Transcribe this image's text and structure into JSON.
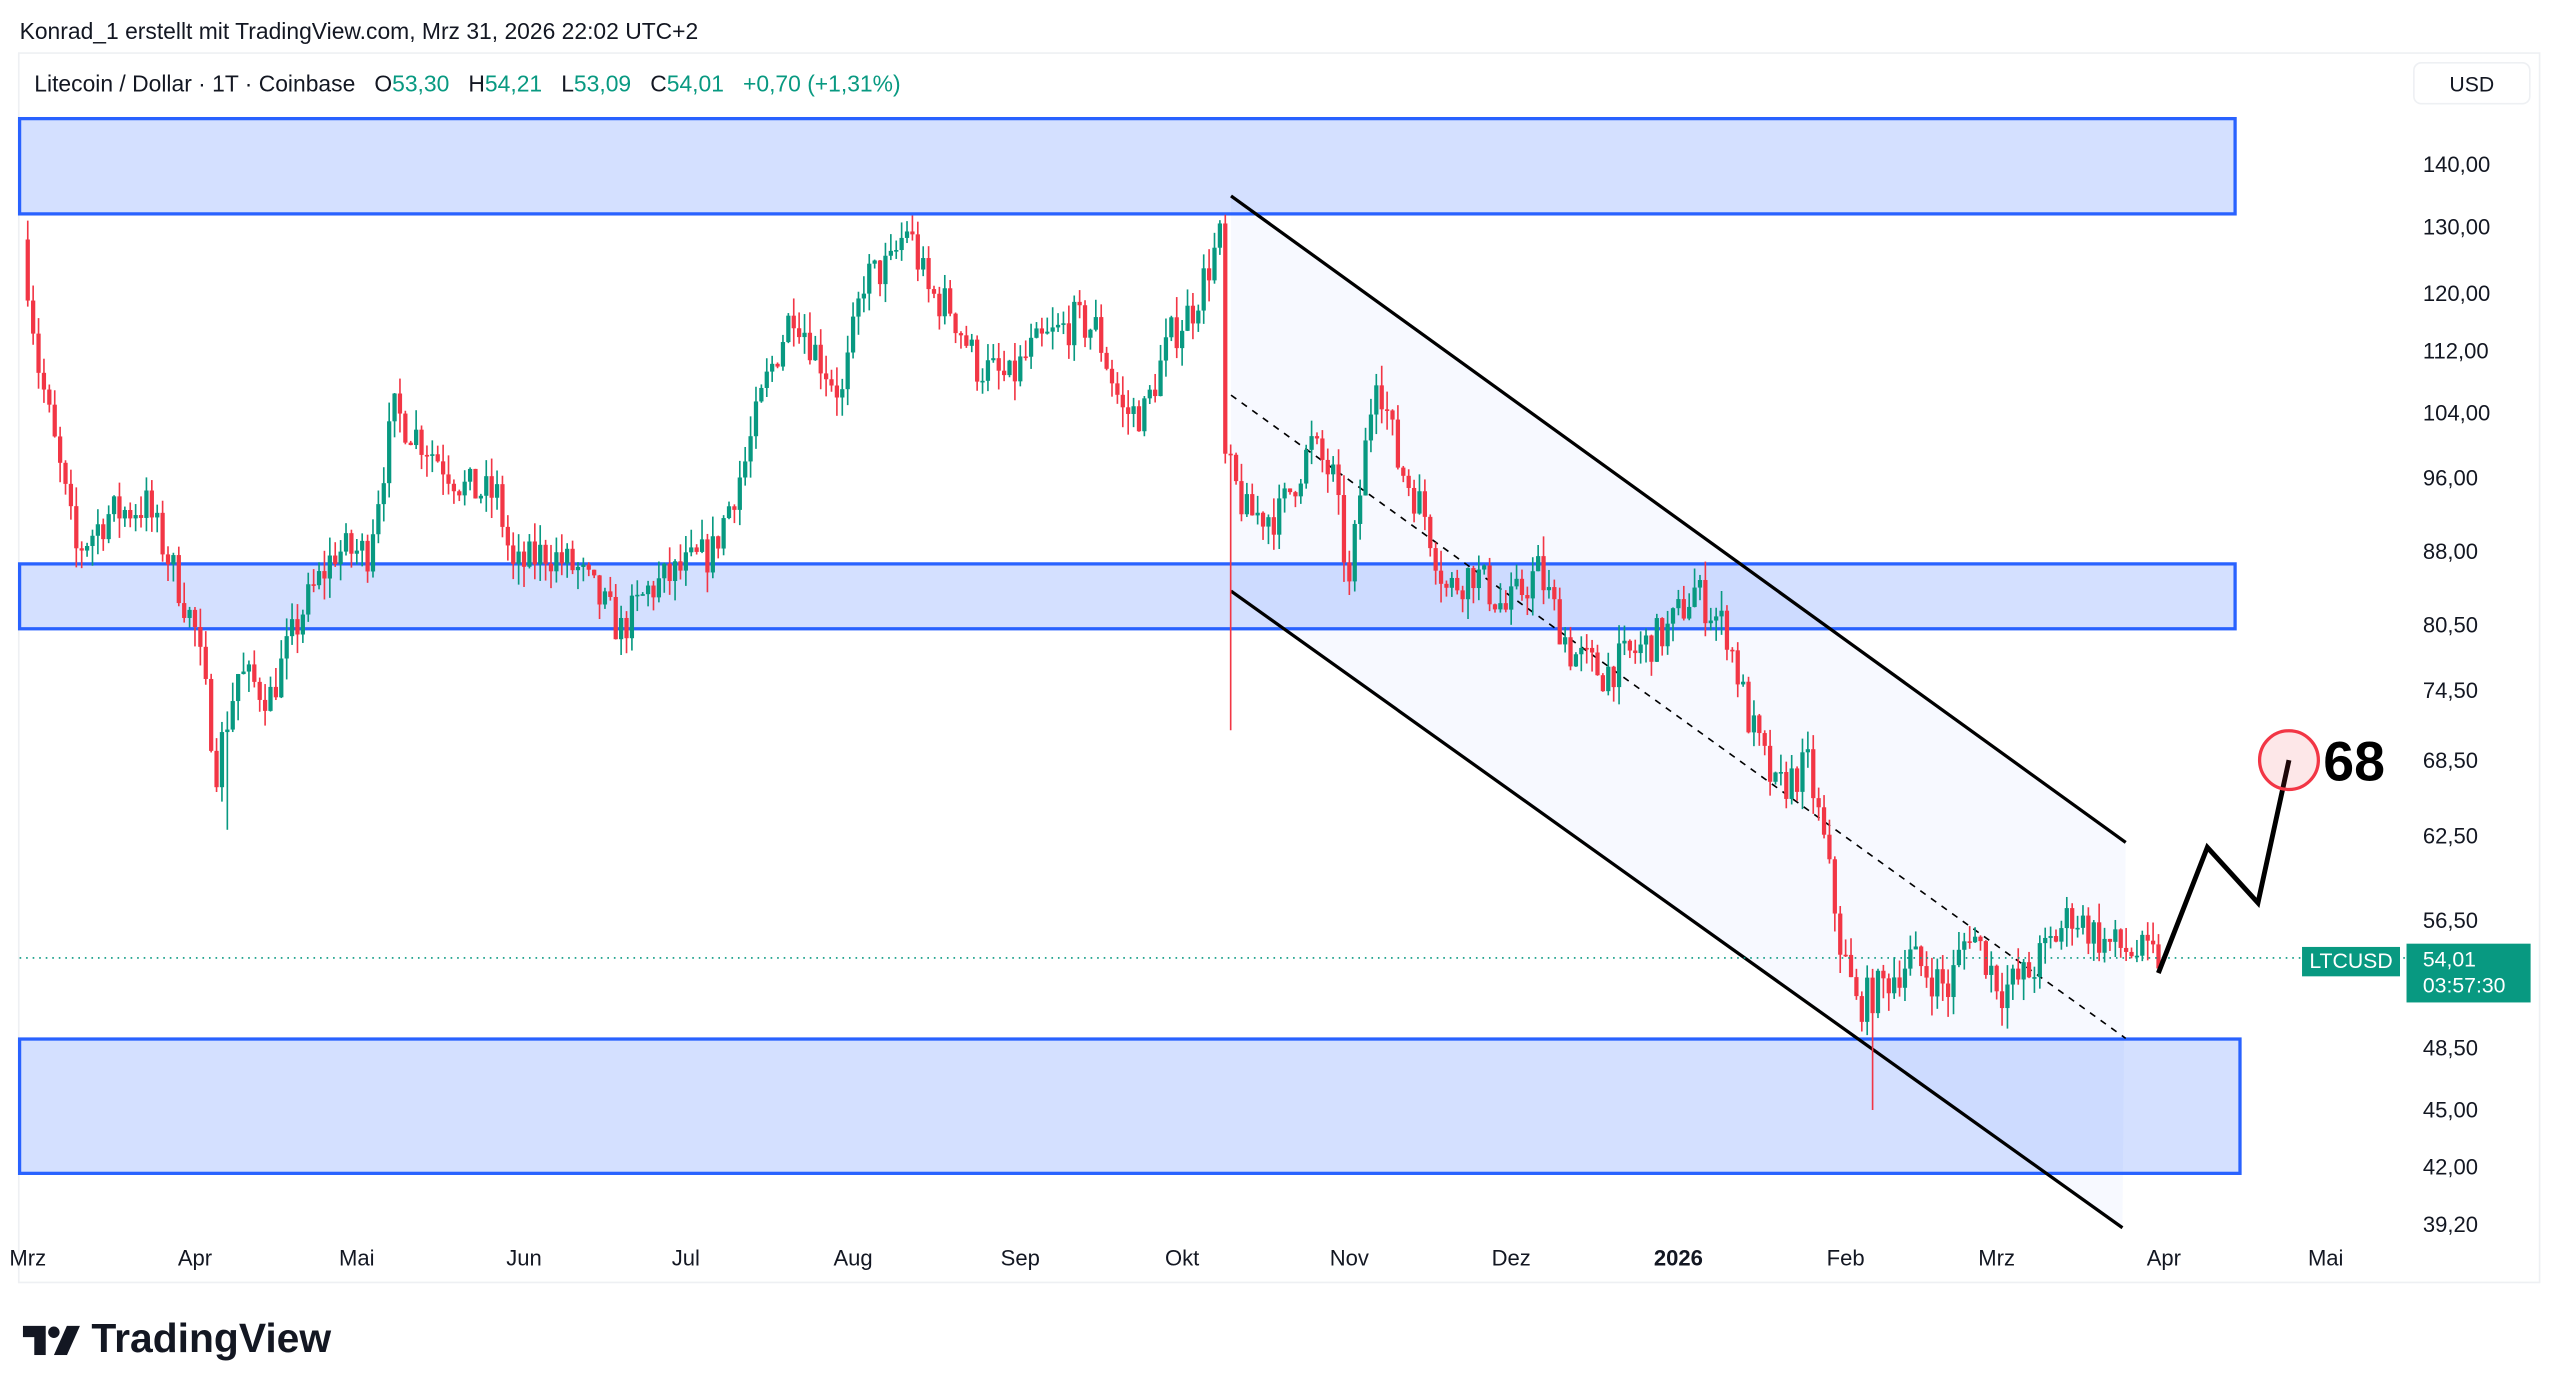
{
  "credit": "Konrad_1 erstellt mit TradingView.com, Mrz 31, 2026 22:02 UTC+2",
  "legend": {
    "title": "Litecoin / Dollar · 1T · Coinbase",
    "o_label": "O",
    "o": "53,30",
    "h_label": "H",
    "h": "54,21",
    "l_label": "L",
    "l": "53,09",
    "c_label": "C",
    "c": "54,01",
    "change": "+0,70 (+1,31%)"
  },
  "currency": "USD",
  "price_axis": [
    "140,00",
    "130,00",
    "120,00",
    "112,00",
    "104,00",
    "96,00",
    "88,00",
    "80,50",
    "74,50",
    "68,50",
    "62,50",
    "56,50",
    "48,50",
    "45,00",
    "42,00",
    "39,20"
  ],
  "price_axis_values": [
    140,
    130,
    120,
    112,
    104,
    96,
    88,
    80.5,
    74.5,
    68.5,
    62.5,
    56.5,
    48.5,
    45,
    42,
    39.2
  ],
  "time_axis": [
    {
      "label": "Mrz",
      "day": 0
    },
    {
      "label": "Apr",
      "day": 31
    },
    {
      "label": "Mai",
      "day": 61
    },
    {
      "label": "Jun",
      "day": 92
    },
    {
      "label": "Jul",
      "day": 122
    },
    {
      "label": "Aug",
      "day": 153
    },
    {
      "label": "Sep",
      "day": 184
    },
    {
      "label": "Okt",
      "day": 214
    },
    {
      "label": "Nov",
      "day": 245
    },
    {
      "label": "Dez",
      "day": 275
    },
    {
      "label": "2026",
      "day": 306,
      "bold": true
    },
    {
      "label": "Feb",
      "day": 337
    },
    {
      "label": "Mrz",
      "day": 365
    },
    {
      "label": "Apr",
      "day": 396
    },
    {
      "label": "Mai",
      "day": 426
    }
  ],
  "symbol": "LTCUSD",
  "last_price": "54,01",
  "last_price_value": 54.01,
  "countdown": "03:57:30",
  "target_label": "68",
  "target_value": 68.5,
  "zones": [
    {
      "from": 132,
      "to": 148
    },
    {
      "from": 80.2,
      "to": 86.7
    },
    {
      "from": 41.7,
      "to": 49.0
    }
  ],
  "colors": {
    "up": "#089981",
    "down": "#f23645",
    "zone": "#2962ff"
  },
  "brand": "TradingView",
  "chart_data": {
    "type": "candlestick",
    "x_unit": "days since 2025-03-01",
    "anchors": [
      [
        0,
        128
      ],
      [
        3,
        110
      ],
      [
        6,
        100
      ],
      [
        10,
        88
      ],
      [
        16,
        92
      ],
      [
        23,
        93
      ],
      [
        28,
        86
      ],
      [
        32,
        80
      ],
      [
        36,
        68
      ],
      [
        40,
        76
      ],
      [
        46,
        74
      ],
      [
        52,
        82
      ],
      [
        58,
        88
      ],
      [
        64,
        88
      ],
      [
        69,
        104
      ],
      [
        75,
        100
      ],
      [
        82,
        95
      ],
      [
        88,
        94
      ],
      [
        91,
        86
      ],
      [
        97,
        88
      ],
      [
        103,
        86
      ],
      [
        111,
        80
      ],
      [
        116,
        84
      ],
      [
        122,
        86
      ],
      [
        128,
        88
      ],
      [
        134,
        98
      ],
      [
        138,
        108
      ],
      [
        143,
        118
      ],
      [
        147,
        112
      ],
      [
        152,
        106
      ],
      [
        156,
        122
      ],
      [
        161,
        124
      ],
      [
        164,
        130
      ],
      [
        168,
        120
      ],
      [
        172,
        118
      ],
      [
        177,
        110
      ],
      [
        183,
        108
      ],
      [
        187,
        112
      ],
      [
        195,
        116
      ],
      [
        199,
        115
      ],
      [
        204,
        104
      ],
      [
        208,
        104
      ],
      [
        213,
        114
      ],
      [
        217,
        118
      ],
      [
        222,
        128
      ],
      [
        223,
        98
      ],
      [
        227,
        92
      ],
      [
        233,
        92
      ],
      [
        239,
        100
      ],
      [
        243,
        96
      ],
      [
        246,
        84
      ],
      [
        251,
        110
      ],
      [
        255,
        98
      ],
      [
        260,
        92
      ],
      [
        264,
        84
      ],
      [
        269,
        86
      ],
      [
        275,
        82
      ],
      [
        281,
        86
      ],
      [
        287,
        78
      ],
      [
        293,
        76
      ],
      [
        299,
        78
      ],
      [
        305,
        80
      ],
      [
        310,
        84
      ],
      [
        316,
        80
      ],
      [
        320,
        72
      ],
      [
        325,
        66
      ],
      [
        331,
        68
      ],
      [
        334,
        62
      ],
      [
        337,
        55
      ],
      [
        340,
        51
      ],
      [
        344,
        52
      ],
      [
        350,
        54
      ],
      [
        357,
        52
      ],
      [
        361,
        56
      ],
      [
        367,
        52
      ],
      [
        372,
        53
      ],
      [
        380,
        57
      ],
      [
        386,
        55
      ],
      [
        395,
        54
      ]
    ],
    "spikes": [
      [
        37,
        63
      ],
      [
        223,
        71
      ],
      [
        342,
        45
      ]
    ],
    "ylim": [
      39.2,
      148
    ],
    "yscale": "log"
  }
}
